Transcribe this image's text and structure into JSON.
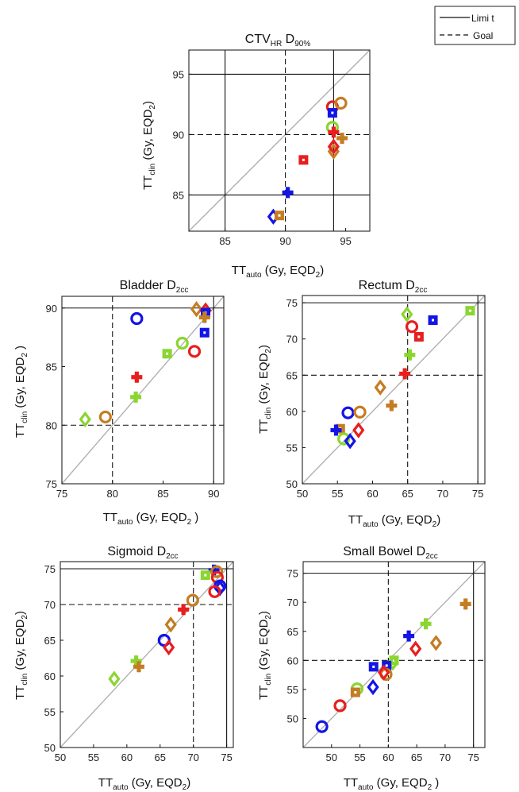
{
  "legend": {
    "entries": [
      {
        "label": "Limi t",
        "style": "solid"
      },
      {
        "label": "Goal",
        "style": "dashed"
      }
    ]
  },
  "colors": {
    "blue": "#1414e6",
    "red": "#e81e1e",
    "lightgreen": "#8ad630",
    "orange": "#c47d22",
    "identity": "#b0b0b0",
    "frame": "#222222"
  },
  "chart_data": [
    {
      "id": "ctv",
      "type": "scatter",
      "title": {
        "main": "CTV",
        "sub": "HR",
        "tail": " D",
        "tail_sub": "90%"
      },
      "xlabel": {
        "main": "TT",
        "sub": "auto",
        "tail": " (Gy, EQD",
        "tail_sub": "2",
        "end": ")"
      },
      "ylabel": {
        "main": "TT",
        "sub": "clin",
        "tail": " (Gy, EQD",
        "tail_sub": "2",
        "end": ")"
      },
      "xlim": [
        82,
        97
      ],
      "ylim": [
        82,
        97
      ],
      "xticks": [
        85,
        90,
        95
      ],
      "yticks": [
        85,
        90,
        95
      ],
      "limit_x": [],
      "limit_y": [
        85,
        95
      ],
      "goal_x": [
        90
      ],
      "goal_y": [
        90
      ],
      "limit_x_vertical": [
        94,
        85
      ],
      "points": [
        {
          "x": 93.9,
          "y": 92.3,
          "marker": "circle",
          "color": "red"
        },
        {
          "x": 94.6,
          "y": 92.6,
          "marker": "circle",
          "color": "orange"
        },
        {
          "x": 93.9,
          "y": 91.8,
          "marker": "square",
          "color": "blue"
        },
        {
          "x": 93.9,
          "y": 90.6,
          "marker": "circle",
          "color": "lightgreen"
        },
        {
          "x": 94.0,
          "y": 90.2,
          "marker": "plus",
          "color": "red"
        },
        {
          "x": 94.0,
          "y": 88.6,
          "marker": "diamond",
          "color": "orange"
        },
        {
          "x": 94.0,
          "y": 89.0,
          "marker": "diamond",
          "color": "red"
        },
        {
          "x": 94.7,
          "y": 89.7,
          "marker": "plus",
          "color": "orange"
        },
        {
          "x": 91.5,
          "y": 87.9,
          "marker": "square",
          "color": "red"
        },
        {
          "x": 90.2,
          "y": 85.2,
          "marker": "plus",
          "color": "blue"
        },
        {
          "x": 89.0,
          "y": 83.2,
          "marker": "diamond",
          "color": "blue"
        },
        {
          "x": 89.5,
          "y": 83.3,
          "marker": "square",
          "color": "orange"
        }
      ]
    },
    {
      "id": "bladder",
      "type": "scatter",
      "title": {
        "main": "Bladder D",
        "sub": "2cc",
        "tail": "",
        "tail_sub": ""
      },
      "xlabel": {
        "main": "TT",
        "sub": "auto",
        "tail": " (Gy, EQD",
        "tail_sub": "2",
        "end": " )"
      },
      "ylabel": {
        "main": "TT",
        "sub": "clin",
        "tail": " (Gy, EQD",
        "tail_sub": "2",
        "end": " )"
      },
      "xlim": [
        75,
        91
      ],
      "ylim": [
        75,
        91
      ],
      "xticks": [
        75,
        80,
        85,
        90
      ],
      "yticks": [
        75,
        80,
        85,
        90
      ],
      "limit_x": [
        90
      ],
      "limit_y": [
        90
      ],
      "goal_x": [
        80
      ],
      "goal_y": [
        80
      ],
      "points": [
        {
          "x": 82.4,
          "y": 89.1,
          "marker": "circle",
          "color": "blue"
        },
        {
          "x": 88.3,
          "y": 89.9,
          "marker": "diamond",
          "color": "orange"
        },
        {
          "x": 89.2,
          "y": 89.8,
          "marker": "diamond",
          "color": "red"
        },
        {
          "x": 89.2,
          "y": 89.6,
          "marker": "square",
          "color": "blue"
        },
        {
          "x": 89.1,
          "y": 89.2,
          "marker": "plus",
          "color": "orange"
        },
        {
          "x": 89.1,
          "y": 87.9,
          "marker": "square",
          "color": "blue"
        },
        {
          "x": 86.9,
          "y": 87.0,
          "marker": "circle",
          "color": "lightgreen"
        },
        {
          "x": 88.1,
          "y": 86.3,
          "marker": "circle",
          "color": "red"
        },
        {
          "x": 85.4,
          "y": 86.1,
          "marker": "square",
          "color": "lightgreen"
        },
        {
          "x": 82.4,
          "y": 84.1,
          "marker": "plus",
          "color": "red"
        },
        {
          "x": 82.3,
          "y": 82.4,
          "marker": "plus",
          "color": "lightgreen"
        },
        {
          "x": 79.3,
          "y": 80.7,
          "marker": "circle",
          "color": "orange"
        },
        {
          "x": 77.3,
          "y": 80.5,
          "marker": "diamond",
          "color": "lightgreen"
        }
      ]
    },
    {
      "id": "rectum",
      "type": "scatter",
      "title": {
        "main": "Rectum D",
        "sub": "2cc",
        "tail": "",
        "tail_sub": ""
      },
      "xlabel": {
        "main": "TT",
        "sub": "auto",
        "tail": " (Gy, EQD",
        "tail_sub": "2",
        "end": ")"
      },
      "ylabel": {
        "main": "TT",
        "sub": "clin",
        "tail": " (Gy, EQD",
        "tail_sub": "2",
        "end": ")"
      },
      "xlim": [
        50,
        76
      ],
      "ylim": [
        50,
        76
      ],
      "xticks": [
        50,
        55,
        60,
        65,
        70,
        75
      ],
      "yticks": [
        50,
        55,
        60,
        65,
        70,
        75
      ],
      "limit_x": [
        75
      ],
      "limit_y": [
        75
      ],
      "goal_x": [
        65
      ],
      "goal_y": [
        65
      ],
      "points": [
        {
          "x": 73.9,
          "y": 73.9,
          "marker": "square",
          "color": "lightgreen"
        },
        {
          "x": 64.9,
          "y": 73.4,
          "marker": "diamond",
          "color": "lightgreen"
        },
        {
          "x": 68.6,
          "y": 72.6,
          "marker": "square",
          "color": "blue"
        },
        {
          "x": 65.6,
          "y": 71.7,
          "marker": "circle",
          "color": "red"
        },
        {
          "x": 66.6,
          "y": 70.3,
          "marker": "square",
          "color": "red"
        },
        {
          "x": 65.3,
          "y": 67.8,
          "marker": "plus",
          "color": "lightgreen"
        },
        {
          "x": 64.6,
          "y": 65.2,
          "marker": "plus",
          "color": "red"
        },
        {
          "x": 61.1,
          "y": 63.3,
          "marker": "diamond",
          "color": "orange"
        },
        {
          "x": 62.7,
          "y": 60.8,
          "marker": "plus",
          "color": "orange"
        },
        {
          "x": 56.5,
          "y": 59.8,
          "marker": "circle",
          "color": "blue"
        },
        {
          "x": 58.2,
          "y": 59.9,
          "marker": "circle",
          "color": "orange"
        },
        {
          "x": 55.4,
          "y": 57.6,
          "marker": "square",
          "color": "orange"
        },
        {
          "x": 54.8,
          "y": 57.4,
          "marker": "plus",
          "color": "blue"
        },
        {
          "x": 58.0,
          "y": 57.4,
          "marker": "diamond",
          "color": "red"
        },
        {
          "x": 55.9,
          "y": 56.2,
          "marker": "circle",
          "color": "lightgreen"
        },
        {
          "x": 56.8,
          "y": 55.9,
          "marker": "diamond",
          "color": "blue"
        }
      ]
    },
    {
      "id": "sigmoid",
      "type": "scatter",
      "title": {
        "main": "Sigmoid D",
        "sub": "2cc",
        "tail": "",
        "tail_sub": ""
      },
      "xlabel": {
        "main": "TT",
        "sub": "auto",
        "tail": " (Gy, EQD",
        "tail_sub": "2",
        "end": ")"
      },
      "ylabel": {
        "main": "TT",
        "sub": "clin",
        "tail": " (Gy, EQD",
        "tail_sub": "2",
        "end": ")"
      },
      "xlim": [
        50,
        76
      ],
      "ylim": [
        50,
        76
      ],
      "xticks": [
        50,
        55,
        60,
        65,
        70,
        75
      ],
      "yticks": [
        50,
        55,
        60,
        65,
        70,
        75
      ],
      "limit_x": [
        75
      ],
      "limit_y": [
        75
      ],
      "goal_x": [
        70
      ],
      "goal_y": [
        70
      ],
      "points": [
        {
          "x": 73.1,
          "y": 74.8,
          "marker": "plus",
          "color": "blue"
        },
        {
          "x": 73.5,
          "y": 74.6,
          "marker": "circle",
          "color": "orange"
        },
        {
          "x": 71.8,
          "y": 74.1,
          "marker": "square",
          "color": "lightgreen"
        },
        {
          "x": 73.6,
          "y": 73.8,
          "marker": "circle",
          "color": "red"
        },
        {
          "x": 74.0,
          "y": 72.6,
          "marker": "circle",
          "color": "blue"
        },
        {
          "x": 74.0,
          "y": 72.3,
          "marker": "diamond",
          "color": "blue"
        },
        {
          "x": 73.2,
          "y": 71.8,
          "marker": "circle",
          "color": "red"
        },
        {
          "x": 69.9,
          "y": 70.6,
          "marker": "circle",
          "color": "orange"
        },
        {
          "x": 68.5,
          "y": 69.3,
          "marker": "plus",
          "color": "red"
        },
        {
          "x": 66.6,
          "y": 67.2,
          "marker": "diamond",
          "color": "orange"
        },
        {
          "x": 65.6,
          "y": 65.0,
          "marker": "circle",
          "color": "blue"
        },
        {
          "x": 66.3,
          "y": 64.0,
          "marker": "diamond",
          "color": "red"
        },
        {
          "x": 61.4,
          "y": 62.1,
          "marker": "plus",
          "color": "lightgreen"
        },
        {
          "x": 61.8,
          "y": 61.3,
          "marker": "plus",
          "color": "orange"
        },
        {
          "x": 58.1,
          "y": 59.6,
          "marker": "diamond",
          "color": "lightgreen"
        }
      ]
    },
    {
      "id": "smallbowel",
      "type": "scatter",
      "title": {
        "main": "Small Bowel D",
        "sub": "2cc",
        "tail": "",
        "tail_sub": ""
      },
      "xlabel": {
        "main": "TT",
        "sub": "auto",
        "tail": " (Gy, EQD",
        "tail_sub": "2",
        "end": " )"
      },
      "ylabel": {
        "main": "TT",
        "sub": "clin",
        "tail": " (Gy, EQD",
        "tail_sub": "2",
        "end": ")"
      },
      "xlim": [
        45,
        77
      ],
      "ylim": [
        45,
        77
      ],
      "xticks": [
        50,
        55,
        60,
        65,
        70,
        75
      ],
      "yticks": [
        50,
        55,
        60,
        65,
        70,
        75
      ],
      "limit_x": [
        75
      ],
      "limit_y": [
        75
      ],
      "goal_x": [
        60
      ],
      "goal_y": [
        60
      ],
      "points": [
        {
          "x": 73.6,
          "y": 69.7,
          "marker": "plus",
          "color": "orange"
        },
        {
          "x": 66.6,
          "y": 66.3,
          "marker": "plus",
          "color": "lightgreen"
        },
        {
          "x": 63.6,
          "y": 64.2,
          "marker": "plus",
          "color": "blue"
        },
        {
          "x": 64.8,
          "y": 62.0,
          "marker": "diamond",
          "color": "red"
        },
        {
          "x": 68.4,
          "y": 63.0,
          "marker": "diamond",
          "color": "orange"
        },
        {
          "x": 61.0,
          "y": 60.0,
          "marker": "square",
          "color": "lightgreen"
        },
        {
          "x": 60.8,
          "y": 59.6,
          "marker": "diamond",
          "color": "lightgreen"
        },
        {
          "x": 59.7,
          "y": 59.1,
          "marker": "square",
          "color": "blue"
        },
        {
          "x": 57.4,
          "y": 58.9,
          "marker": "square",
          "color": "blue"
        },
        {
          "x": 59.6,
          "y": 57.6,
          "marker": "circle",
          "color": "orange"
        },
        {
          "x": 59.2,
          "y": 57.9,
          "marker": "diamond",
          "color": "red"
        },
        {
          "x": 57.3,
          "y": 55.4,
          "marker": "diamond",
          "color": "blue"
        },
        {
          "x": 54.5,
          "y": 55.1,
          "marker": "circle",
          "color": "lightgreen"
        },
        {
          "x": 54.2,
          "y": 54.5,
          "marker": "square",
          "color": "orange"
        },
        {
          "x": 51.5,
          "y": 52.2,
          "marker": "circle",
          "color": "red"
        },
        {
          "x": 48.3,
          "y": 48.6,
          "marker": "circle",
          "color": "blue"
        }
      ]
    }
  ]
}
